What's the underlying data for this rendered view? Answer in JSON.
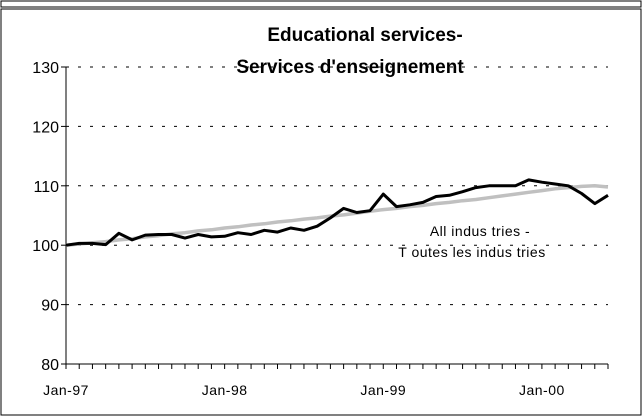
{
  "chart_data": {
    "type": "line",
    "title": "Educational services-",
    "subtitle": "Services d'enseignement",
    "xlabel": "",
    "ylabel": "",
    "ylim": [
      80,
      130
    ],
    "yticks": [
      80,
      90,
      100,
      110,
      120,
      130
    ],
    "x_tick_labels": [
      "Jan-97",
      "Jan-98",
      "Jan-99",
      "Jan-00"
    ],
    "x_tick_positions": [
      "1997-01",
      "1998-01",
      "1999-01",
      "2000-01"
    ],
    "x": [
      "1997-01",
      "1997-02",
      "1997-03",
      "1997-04",
      "1997-05",
      "1997-06",
      "1997-07",
      "1997-08",
      "1997-09",
      "1997-10",
      "1997-11",
      "1997-12",
      "1998-01",
      "1998-02",
      "1998-03",
      "1998-04",
      "1998-05",
      "1998-06",
      "1998-07",
      "1998-08",
      "1998-09",
      "1998-10",
      "1998-11",
      "1998-12",
      "1999-01",
      "1999-02",
      "1999-03",
      "1999-04",
      "1999-05",
      "1999-06",
      "1999-07",
      "1999-08",
      "1999-09",
      "1999-10",
      "1999-11",
      "1999-12",
      "2000-01",
      "2000-02",
      "2000-03",
      "2000-04",
      "2000-05",
      "2000-06"
    ],
    "grid": true,
    "series": [
      {
        "name": "",
        "color": "#000000",
        "values": [
          100.0,
          100.3,
          100.3,
          100.1,
          102.0,
          100.9,
          101.7,
          101.8,
          101.8,
          101.2,
          101.8,
          101.4,
          101.5,
          102.1,
          101.8,
          102.5,
          102.2,
          102.9,
          102.5,
          103.2,
          104.6,
          106.2,
          105.5,
          105.8,
          108.6,
          106.5,
          106.8,
          107.2,
          108.2,
          108.4,
          109.0,
          109.7,
          110.0,
          110.0,
          110.0,
          111.0,
          110.6,
          110.3,
          110.0,
          108.7,
          107.0,
          108.4
        ]
      },
      {
        "name": "",
        "color": "#c0c0c0",
        "values": [
          100.0,
          100.2,
          100.4,
          100.6,
          100.9,
          101.1,
          101.4,
          101.6,
          101.9,
          102.1,
          102.4,
          102.6,
          102.9,
          103.1,
          103.4,
          103.6,
          103.9,
          104.1,
          104.4,
          104.6,
          104.9,
          105.1,
          105.4,
          105.7,
          106.0,
          106.2,
          106.5,
          106.7,
          107.0,
          107.2,
          107.5,
          107.7,
          108.0,
          108.3,
          108.6,
          108.9,
          109.2,
          109.5,
          109.7,
          109.9,
          110.0,
          109.8
        ]
      }
    ],
    "annotation": {
      "line1": "All indus tries -",
      "line2": "T outes les indus tries"
    }
  }
}
